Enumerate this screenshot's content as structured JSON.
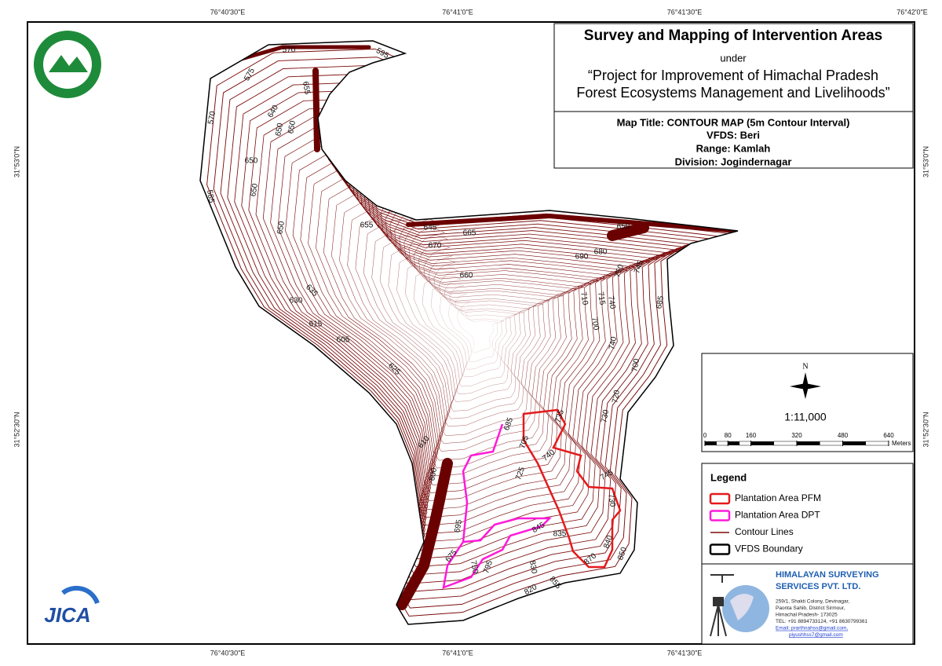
{
  "coordinates": {
    "top": [
      "76°40'30\"E",
      "76°41'0\"E",
      "76°41'30\"E",
      "76°42'0\"E"
    ],
    "bottom": [
      "76°40'30\"E",
      "76°41'0\"E",
      "76°41'30\"E"
    ],
    "left": [
      "31°53'0\"N",
      "31°52'30\"N"
    ],
    "right": [
      "31°53'0\"N",
      "31°52'30\"N"
    ]
  },
  "header": {
    "title": "Survey and Mapping of Intervention Areas",
    "under": "under",
    "project_line_1": "“Project for Improvement of Himachal Pradesh",
    "project_line_2": "Forest Ecosystems Management and Livelihoods”",
    "map_title": "Map Title: CONTOUR MAP (5m Contour Interval)",
    "vfds": "VFDS: Beri",
    "range": "Range: Kamlah",
    "division": "Division: Jogindernagar"
  },
  "scale": {
    "north": "N",
    "ratio": "1:11,000",
    "ticks": [
      0,
      80,
      160,
      320,
      480,
      640
    ],
    "unit": "Meters"
  },
  "legend": {
    "title": "Legend",
    "items": [
      {
        "label": "Plantation Area PFM",
        "color": "#e41a1c"
      },
      {
        "label": "Plantation Area DPT",
        "color": "#ff1ad9"
      },
      {
        "label": "Contour Lines",
        "color": "#7b0a0a"
      },
      {
        "label": "VFDS Boundary",
        "color": "#000000"
      }
    ]
  },
  "company": {
    "name_1": "HIMALAYAN SURVEYING",
    "name_2": "SERVICES PVT. LTD.",
    "address": [
      "259/1, Shakti Colony, Devinagar,",
      "Paonta Sahib, District Sirmour,",
      "Himachal Pradesh- 173025",
      "TEL: +91 8894733124, +91 8630799361",
      "Email: prarthnahss@gmail.com,",
      "piyushhss7@gmail.com"
    ]
  },
  "jica": "JICA",
  "contour_labels": [
    "570",
    "595",
    "575",
    "655",
    "640",
    "650",
    "650",
    "570",
    "650",
    "650",
    "585",
    "650",
    "655",
    "645",
    "665",
    "670",
    "660",
    "650",
    "690",
    "680",
    "750",
    "745",
    "710",
    "715",
    "740",
    "700",
    "685",
    "740",
    "635",
    "630",
    "615",
    "605",
    "625",
    "700",
    "720",
    "730",
    "735",
    "685",
    "705",
    "740",
    "610",
    "725",
    "745",
    "730",
    "600",
    "695",
    "845",
    "835",
    "840",
    "850",
    "870",
    "675",
    "750",
    "795",
    "830",
    "855",
    "820"
  ]
}
